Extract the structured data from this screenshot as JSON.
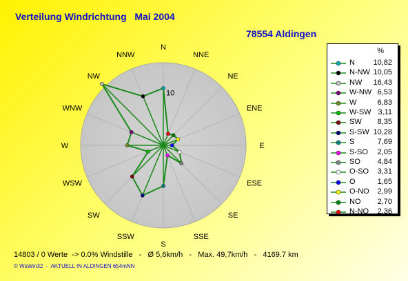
{
  "title": "Verteilung Windrichtung   Mai 2004",
  "station": "78554 Aldingen",
  "legend_unit": "%",
  "footer": "14803 / 0 Werte  -> 0.0% Windstille   -   Ø 5,6km/h   -   Max. 49,7km/h   -   4169.7 km",
  "credit": "© WsWin32  -  AKTUELL IN ALDINGEN 654mNN",
  "chart_data": {
    "type": "radar",
    "title": "Verteilung Windrichtung   Mai 2004",
    "directions": [
      "N",
      "NNE",
      "NE",
      "ENE",
      "E",
      "ESE",
      "SE",
      "SSE",
      "S",
      "SSW",
      "SW",
      "WSW",
      "W",
      "WNW",
      "NW",
      "NNW"
    ],
    "radial_tick_label": "10",
    "radial_max": 16.43,
    "line_color": "#1a8a1a",
    "series": [
      {
        "name": "N",
        "direction": "N",
        "value": 10.82,
        "color": "#00b0b0"
      },
      {
        "name": "N-NW",
        "direction": "NNW",
        "value": 10.05,
        "color": "#000000"
      },
      {
        "name": "NW",
        "direction": "NW",
        "value": 16.43,
        "color": "#c0c0c0"
      },
      {
        "name": "W-NW",
        "direction": "WNW",
        "value": 6.53,
        "color": "#800080"
      },
      {
        "name": "W",
        "direction": "W",
        "value": 6.83,
        "color": "#6b8e23"
      },
      {
        "name": "W-SW",
        "direction": "WSW",
        "value": 3.11,
        "color": "#00c000"
      },
      {
        "name": "SW",
        "direction": "SW",
        "value": 8.35,
        "color": "#800000"
      },
      {
        "name": "S-SW",
        "direction": "SSW",
        "value": 10.28,
        "color": "#000080"
      },
      {
        "name": "S",
        "direction": "S",
        "value": 7.69,
        "color": "#008080"
      },
      {
        "name": "S-SO",
        "direction": "SSE",
        "value": 2.05,
        "color": "#ff00ff"
      },
      {
        "name": "SO",
        "direction": "SE",
        "value": 4.84,
        "color": "#808080"
      },
      {
        "name": "O-SO",
        "direction": "ESE",
        "value": 3.31,
        "color": "#ffffff"
      },
      {
        "name": "O",
        "direction": "E",
        "value": 1.65,
        "color": "#0000ff"
      },
      {
        "name": "O-NO",
        "direction": "ENE",
        "value": 2.99,
        "color": "#ffff00"
      },
      {
        "name": "NO",
        "direction": "NE",
        "value": 2.7,
        "color": "#008000"
      },
      {
        "name": "N-NO",
        "direction": "NNE",
        "value": 2.36,
        "color": "#ff0000"
      }
    ]
  }
}
